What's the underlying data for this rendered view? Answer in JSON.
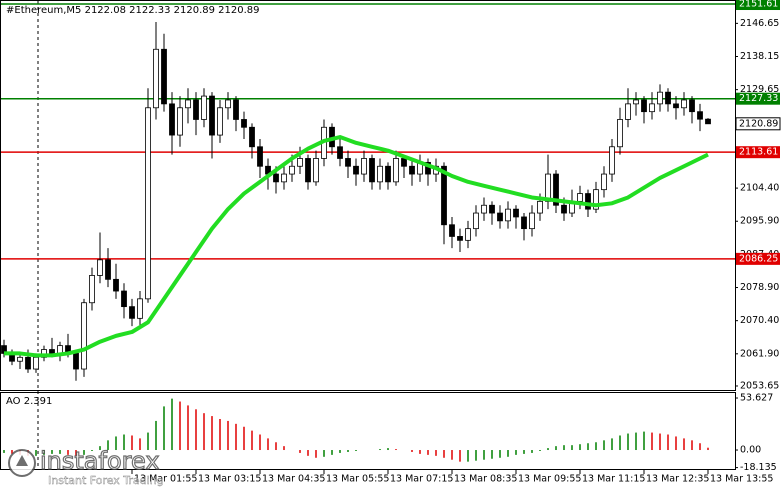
{
  "chart_data": {
    "type": "candlestick",
    "title": "#Ethereum,M5  2122.08 2122.33 2120.89 2120.89",
    "ylim": [
      2052.62,
      2152.64
    ],
    "yticks": [
      2146.65,
      2138.15,
      2129.65,
      {
        "value": 2104.4,
        "label": "2104.40"
      },
      {
        "value": 2095.9,
        "label": "2095.90"
      },
      {
        "value": 2087.4,
        "label": "2087.40"
      },
      {
        "value": 2078.9,
        "label": "2078.90"
      },
      {
        "value": 2070.4,
        "label": "2070.40"
      },
      {
        "value": 2061.9,
        "label": "2061.90"
      },
      2053.65
    ],
    "xticks": [
      {
        "value": 16,
        "label": "13 Mar 01:55"
      },
      {
        "value": 24,
        "label": "13 Mar 03:15"
      },
      {
        "value": 32,
        "label": "13 Mar 04:35"
      },
      {
        "value": 40,
        "label": "13 Mar 05:55"
      },
      {
        "value": 48,
        "label": "13 Mar 07:15"
      },
      {
        "value": 56,
        "label": "13 Mar 08:35"
      },
      {
        "value": 64,
        "label": "13 Mar 09:55"
      },
      {
        "value": 72,
        "label": "13 Mar 11:15"
      },
      {
        "value": 80,
        "label": "13 Mar 12:35"
      },
      {
        "value": 88,
        "label": "13 Mar 13:55"
      }
    ],
    "ohlc": [
      [
        2064,
        2065.5,
        2061,
        2062
      ],
      [
        2062,
        2063,
        2059,
        2060
      ],
      [
        2060,
        2062,
        2058,
        2061
      ],
      [
        2061,
        2063,
        2057,
        2058
      ],
      [
        2058,
        2062,
        2057,
        2061
      ],
      [
        2061,
        2064,
        2060,
        2063
      ],
      [
        2063,
        2066,
        2061,
        2062
      ],
      [
        2062,
        2065,
        2060,
        2064
      ],
      [
        2064,
        2067,
        2061,
        2062
      ],
      [
        2062,
        2063,
        2055,
        2058
      ],
      [
        2058,
        2076,
        2056,
        2075
      ],
      [
        2075,
        2084,
        2073,
        2082
      ],
      [
        2082,
        2093,
        2080,
        2086
      ],
      [
        2086,
        2089,
        2079,
        2081
      ],
      [
        2081,
        2085,
        2076,
        2078
      ],
      [
        2078,
        2080,
        2071,
        2074
      ],
      [
        2074,
        2076,
        2069,
        2071
      ],
      [
        2071,
        2078,
        2069,
        2076
      ],
      [
        2076,
        2130,
        2075,
        2125
      ],
      [
        2125,
        2147,
        2122,
        2140
      ],
      [
        2140,
        2144,
        2124,
        2126
      ],
      [
        2126,
        2129,
        2113,
        2118
      ],
      [
        2118,
        2128,
        2115,
        2125
      ],
      [
        2125,
        2130,
        2121,
        2127
      ],
      [
        2127,
        2129,
        2118,
        2122
      ],
      [
        2122,
        2130,
        2120,
        2128
      ],
      [
        2128,
        2129,
        2112,
        2118
      ],
      [
        2118,
        2127,
        2116,
        2125
      ],
      [
        2125,
        2129,
        2122,
        2127
      ],
      [
        2127,
        2128,
        2119,
        2122
      ],
      [
        2122,
        2124,
        2117,
        2120
      ],
      [
        2120,
        2121,
        2112,
        2115
      ],
      [
        2115,
        2117,
        2107,
        2110
      ],
      [
        2110,
        2112,
        2104,
        2108
      ],
      [
        2108,
        2110,
        2103,
        2106
      ],
      [
        2106,
        2111,
        2104,
        2108
      ],
      [
        2108,
        2113,
        2106,
        2110
      ],
      [
        2110,
        2115,
        2108,
        2112
      ],
      [
        2112,
        2113,
        2104,
        2106
      ],
      [
        2106,
        2114,
        2105,
        2112
      ],
      [
        2112,
        2122,
        2110,
        2120
      ],
      [
        2120,
        2121,
        2113,
        2115
      ],
      [
        2115,
        2117,
        2110,
        2112
      ],
      [
        2112,
        2114,
        2107,
        2110
      ],
      [
        2110,
        2112,
        2105,
        2108
      ],
      [
        2108,
        2114,
        2106,
        2112
      ],
      [
        2112,
        2113,
        2104,
        2106
      ],
      [
        2106,
        2112,
        2104,
        2110
      ],
      [
        2110,
        2111,
        2104,
        2106
      ],
      [
        2106,
        2114,
        2105,
        2112
      ],
      [
        2112,
        2113,
        2107,
        2110
      ],
      [
        2110,
        2112,
        2105,
        2108
      ],
      [
        2108,
        2113,
        2106,
        2111
      ],
      [
        2111,
        2112,
        2105,
        2108
      ],
      [
        2108,
        2112,
        2106,
        2110
      ],
      [
        2110,
        2111,
        2090,
        2095
      ],
      [
        2095,
        2097,
        2089,
        2092
      ],
      [
        2092,
        2094,
        2088,
        2091
      ],
      [
        2091,
        2096,
        2089,
        2094
      ],
      [
        2094,
        2100,
        2092,
        2098
      ],
      [
        2098,
        2102,
        2096,
        2100
      ],
      [
        2100,
        2101,
        2095,
        2098
      ],
      [
        2098,
        2100,
        2094,
        2096
      ],
      [
        2096,
        2101,
        2094,
        2099
      ],
      [
        2099,
        2100,
        2094,
        2097
      ],
      [
        2097,
        2098,
        2091,
        2094
      ],
      [
        2094,
        2100,
        2092,
        2098
      ],
      [
        2098,
        2103,
        2096,
        2101
      ],
      [
        2101,
        2113,
        2099,
        2108
      ],
      [
        2108,
        2109,
        2098,
        2100
      ],
      [
        2100,
        2102,
        2096,
        2098
      ],
      [
        2098,
        2104,
        2097,
        2101
      ],
      [
        2101,
        2105,
        2099,
        2103
      ],
      [
        2103,
        2104,
        2097,
        2099
      ],
      [
        2099,
        2106,
        2098,
        2104
      ],
      [
        2104,
        2110,
        2102,
        2108
      ],
      [
        2108,
        2117,
        2106,
        2115
      ],
      [
        2115,
        2125,
        2113,
        2122
      ],
      [
        2122,
        2130,
        2120,
        2126
      ],
      [
        2126,
        2129,
        2123,
        2127
      ],
      [
        2127,
        2128,
        2121,
        2124
      ],
      [
        2124,
        2129,
        2122,
        2126
      ],
      [
        2126,
        2131,
        2124,
        2129
      ],
      [
        2129,
        2130,
        2124,
        2126
      ],
      [
        2126,
        2128,
        2122,
        2125
      ],
      [
        2125,
        2129,
        2123,
        2127
      ],
      [
        2127,
        2128,
        2121,
        2124
      ],
      [
        2124,
        2126,
        2119,
        2122.08
      ],
      [
        2122.08,
        2122.33,
        2120.89,
        2120.89
      ]
    ],
    "ma": {
      "color": "#22dd22",
      "x": [
        0,
        2,
        4,
        6,
        8,
        10,
        12,
        14,
        16,
        18,
        20,
        22,
        24,
        26,
        28,
        30,
        32,
        34,
        36,
        38,
        40,
        42,
        44,
        46,
        48,
        50,
        52,
        54,
        56,
        58,
        60,
        62,
        64,
        66,
        68,
        70,
        72,
        74,
        76,
        78,
        80,
        82,
        84,
        86,
        88
      ],
      "values": [
        2062,
        2062,
        2061.5,
        2061.5,
        2062,
        2063,
        2065,
        2066.5,
        2067.5,
        2070,
        2076,
        2082,
        2088,
        2094,
        2099,
        2103,
        2106,
        2109,
        2112,
        2114.5,
        2116.5,
        2117.5,
        2116,
        2115,
        2114,
        2112.5,
        2111,
        2109.5,
        2107.5,
        2106,
        2105,
        2104,
        2103,
        2102,
        2101.5,
        2101,
        2100.5,
        2100,
        2100.5,
        2102,
        2104.5,
        2107,
        2109,
        2111,
        2113
      ]
    },
    "levels": [
      {
        "value": 2151.61,
        "color": "#008000"
      },
      {
        "value": 2127.33,
        "color": "#008000"
      },
      {
        "value": 2113.61,
        "color": "#e00000"
      },
      {
        "value": 2086.25,
        "color": "#e00000"
      }
    ],
    "current_price": 2120.89,
    "oscillator": {
      "label": "AO 2.391",
      "up_color": "#008000",
      "down_color": "#e00000",
      "ylim": [
        -20.6,
        58.8
      ],
      "yticks": [
        53.627,
        {
          "value": 0,
          "label": "0.00"
        },
        -18.135
      ],
      "values": [
        -3,
        -4,
        -5,
        -6,
        -6,
        -5,
        -4,
        -4,
        -5,
        -6,
        -5,
        -1,
        4,
        10,
        14,
        16,
        15,
        12,
        18,
        30,
        45,
        53,
        50,
        46,
        42,
        38,
        35,
        32,
        30,
        27,
        24,
        20,
        16,
        12,
        8,
        4,
        0,
        -3,
        -6,
        -8,
        -7,
        -5,
        -3,
        -2,
        -1,
        0,
        0,
        1,
        2,
        1,
        0,
        -2,
        -4,
        -5,
        -6,
        -8,
        -10,
        -12,
        -12,
        -11,
        -10,
        -9,
        -8,
        -7,
        -5,
        -4,
        -3,
        -1,
        2,
        4,
        5,
        5,
        6,
        7,
        8,
        10,
        12,
        15,
        17,
        18,
        19,
        18,
        17,
        16,
        14,
        12,
        10,
        7,
        2.391
      ]
    },
    "watermark": {
      "brand": "instaforex",
      "slogan": "Instant Forex Trading"
    }
  }
}
